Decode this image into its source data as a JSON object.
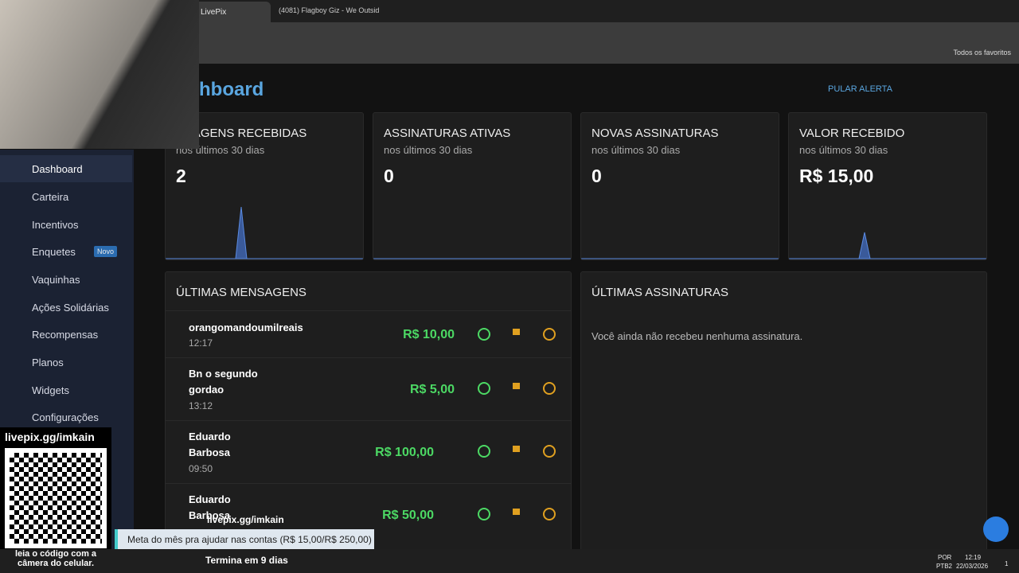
{
  "browser": {
    "tabs": [
      "LivePix",
      "(4081) Flagboy Giz - We Outsid"
    ],
    "bookmarks": "Todos os favoritos"
  },
  "header": {
    "title": "hboard",
    "action": "PULAR ALERTA"
  },
  "sidebar": {
    "items": [
      "Dashboard",
      "Carteira",
      "Incentivos",
      "Enquetes",
      "Vaquinhas",
      "Ações Solidárias",
      "Recompensas",
      "Planos",
      "Widgets",
      "Configurações"
    ],
    "badge": "Novo"
  },
  "cards": [
    {
      "title": "NSAGENS RECEBIDAS",
      "subtitle": "nos últimos 30 dias",
      "value": "2"
    },
    {
      "title": "ASSINATURAS ATIVAS",
      "subtitle": "nos últimos 30 dias",
      "value": "0"
    },
    {
      "title": "NOVAS ASSINATURAS",
      "subtitle": "nos últimos 30 dias",
      "value": "0"
    },
    {
      "title": "VALOR RECEBIDO",
      "subtitle": "nos últimos 30 dias",
      "value": "R$ 15,00"
    }
  ],
  "messages": {
    "title": "ÚLTIMAS MENSAGENS",
    "rows": [
      {
        "name": "orangomandoumilreais",
        "time": "12:17",
        "amount": "R$ 10,00"
      },
      {
        "name": "Bn o segundo gordao",
        "time": "13:12",
        "amount": "R$ 5,00"
      },
      {
        "name": "Eduardo Barbosa",
        "time": "09:50",
        "amount": "R$ 100,00"
      },
      {
        "name": "Eduardo Barbosa",
        "amount": "R$ 50,00"
      }
    ]
  },
  "subscriptions": {
    "title": "ÚLTIMAS ASSINATURAS",
    "empty": "Você ainda não recebeu nenhuma assinatura."
  },
  "overlay": {
    "qr_url": "livepix.gg/imkain",
    "qr_hint": "leia o código com a câmera do celular.",
    "goal_url": "livepix.gg/imkain",
    "goal": "Meta do mês pra ajudar nas contas (R$ 15,00/R$ 250,00)",
    "goal_end": "Termina em 9 dias"
  },
  "taskbar": {
    "lang": "POR",
    "layout": "PTB2",
    "time": "12:19",
    "date": "22/03/2026",
    "notifications": "1"
  }
}
